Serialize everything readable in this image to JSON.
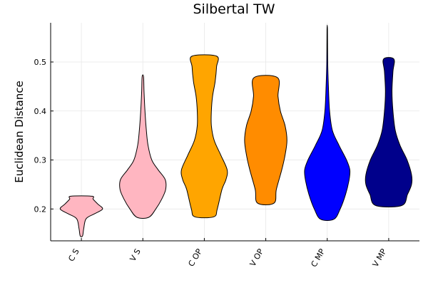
{
  "chart_data": {
    "type": "violin",
    "title": "Silbertal TW",
    "xlabel": "",
    "ylabel": "Euclidean Distance",
    "ylim": [
      0.135,
      0.58
    ],
    "yticks": [
      0.2,
      0.3,
      0.4,
      0.5
    ],
    "ytick_labels": [
      "0.2",
      "0.3",
      "0.4",
      "0.5"
    ],
    "grid": true,
    "categories": [
      "C S",
      "V S",
      "C OP",
      "V OP",
      "C MP",
      "V MP"
    ],
    "series": [
      {
        "category": "C S",
        "color": "#ffb6c1",
        "min": 0.145,
        "max": 0.226,
        "profile": [
          [
            0.145,
            0.05
          ],
          [
            0.16,
            0.1
          ],
          [
            0.18,
            0.2
          ],
          [
            0.19,
            0.55
          ],
          [
            0.2,
            0.9
          ],
          [
            0.21,
            0.7
          ],
          [
            0.22,
            0.5
          ],
          [
            0.226,
            0.45
          ]
        ]
      },
      {
        "category": "V S",
        "color": "#ffb6c1",
        "min": 0.183,
        "max": 0.47,
        "profile": [
          [
            0.183,
            0.25
          ],
          [
            0.2,
            0.55
          ],
          [
            0.22,
            0.8
          ],
          [
            0.24,
            0.97
          ],
          [
            0.26,
            0.95
          ],
          [
            0.28,
            0.65
          ],
          [
            0.3,
            0.38
          ],
          [
            0.33,
            0.22
          ],
          [
            0.36,
            0.15
          ],
          [
            0.4,
            0.09
          ],
          [
            0.44,
            0.05
          ],
          [
            0.47,
            0.03
          ]
        ]
      },
      {
        "category": "C OP",
        "color": "#ffa500",
        "min": 0.184,
        "max": 0.512,
        "profile": [
          [
            0.184,
            0.4
          ],
          [
            0.2,
            0.55
          ],
          [
            0.24,
            0.75
          ],
          [
            0.26,
            0.92
          ],
          [
            0.28,
            0.97
          ],
          [
            0.31,
            0.7
          ],
          [
            0.34,
            0.42
          ],
          [
            0.37,
            0.3
          ],
          [
            0.4,
            0.3
          ],
          [
            0.43,
            0.35
          ],
          [
            0.46,
            0.46
          ],
          [
            0.49,
            0.52
          ],
          [
            0.512,
            0.52
          ]
        ]
      },
      {
        "category": "V OP",
        "color": "#ff8c00",
        "min": 0.212,
        "max": 0.468,
        "profile": [
          [
            0.212,
            0.35
          ],
          [
            0.24,
            0.45
          ],
          [
            0.28,
            0.68
          ],
          [
            0.31,
            0.82
          ],
          [
            0.34,
            0.9
          ],
          [
            0.37,
            0.82
          ],
          [
            0.4,
            0.62
          ],
          [
            0.43,
            0.52
          ],
          [
            0.468,
            0.5
          ]
        ]
      },
      {
        "category": "C MP",
        "color": "#0000ff",
        "min": 0.179,
        "max": 0.567,
        "profile": [
          [
            0.179,
            0.28
          ],
          [
            0.2,
            0.55
          ],
          [
            0.23,
            0.78
          ],
          [
            0.26,
            0.93
          ],
          [
            0.28,
            0.96
          ],
          [
            0.3,
            0.82
          ],
          [
            0.33,
            0.5
          ],
          [
            0.36,
            0.22
          ],
          [
            0.4,
            0.1
          ],
          [
            0.45,
            0.05
          ],
          [
            0.5,
            0.02
          ],
          [
            0.567,
            0.01
          ]
        ]
      },
      {
        "category": "V MP",
        "color": "#00008b",
        "min": 0.207,
        "max": 0.506,
        "profile": [
          [
            0.207,
            0.55
          ],
          [
            0.23,
            0.8
          ],
          [
            0.25,
            0.97
          ],
          [
            0.27,
            0.97
          ],
          [
            0.3,
            0.78
          ],
          [
            0.33,
            0.48
          ],
          [
            0.36,
            0.28
          ],
          [
            0.4,
            0.18
          ],
          [
            0.44,
            0.14
          ],
          [
            0.48,
            0.18
          ],
          [
            0.506,
            0.22
          ]
        ]
      }
    ]
  }
}
